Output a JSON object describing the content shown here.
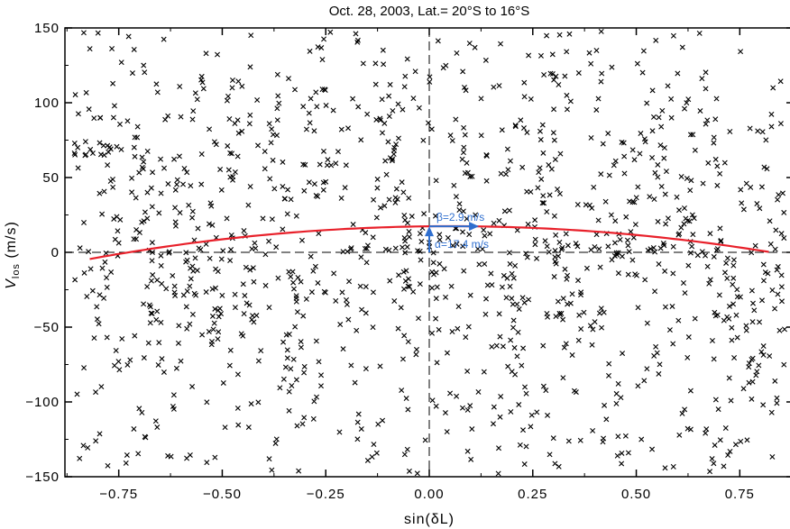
{
  "chart_data": {
    "type": "scatter",
    "title": "Oct. 28, 2003, Lat.= 20°S to 16°S",
    "xlabel": "sin(δL)",
    "ylabel_main": "V",
    "ylabel_sub": "los",
    "ylabel_unit": " (m/s)",
    "xlim": [
      -0.88,
      0.88
    ],
    "ylim": [
      -150,
      150
    ],
    "xticks": [
      -0.75,
      -0.5,
      -0.25,
      0.0,
      0.25,
      0.5,
      0.75
    ],
    "xtick_labels": [
      "−0.75",
      "−0.50",
      "−0.25",
      "0.00",
      "0.25",
      "0.50",
      "0.75"
    ],
    "yticks": [
      -150,
      -100,
      -50,
      0,
      50,
      100,
      150
    ],
    "ytick_labels": [
      "−150",
      "−100",
      "−50",
      "0",
      "50",
      "100",
      "150"
    ],
    "grid": false,
    "reference_lines": {
      "x": 0,
      "y": 0
    },
    "fit_curve": {
      "color": "#e8202a",
      "x_range": [
        -0.82,
        0.82
      ],
      "alpha": 17.4,
      "beta": 2.9,
      "curvature": -29
    },
    "annotations": [
      {
        "text": "β=2.9 m/s",
        "color": "#2f6fcf"
      },
      {
        "text": "α=17.4 m/s",
        "color": "#2f6fcf"
      }
    ],
    "marker": "x",
    "marker_color": "#000000",
    "n_points": 1300,
    "distribution": "approximately uniform scatter over x in [-0.85, 0.85] and Vlos in [-150, 150], denser near Vlos = 0"
  }
}
